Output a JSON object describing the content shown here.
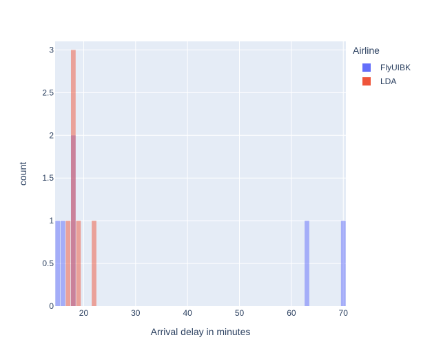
{
  "chart_data": {
    "type": "bar",
    "title": "",
    "xlabel": "Arrival delay in minutes",
    "ylabel": "count",
    "xlim": [
      14.5,
      70.5
    ],
    "ylim": [
      0,
      3.1
    ],
    "barmode": "overlay",
    "bin_width": 1,
    "grid": true,
    "legend_position": "top-right",
    "legend_title": "Airline",
    "x_ticks": [
      {
        "value": 20,
        "label": "20"
      },
      {
        "value": 30,
        "label": "30"
      },
      {
        "value": 40,
        "label": "40"
      },
      {
        "value": 50,
        "label": "50"
      },
      {
        "value": 60,
        "label": "60"
      },
      {
        "value": 70,
        "label": "70"
      }
    ],
    "y_ticks": [
      {
        "value": 0,
        "label": "0"
      },
      {
        "value": 0.5,
        "label": "0.5"
      },
      {
        "value": 1,
        "label": "1"
      },
      {
        "value": 1.5,
        "label": "1.5"
      },
      {
        "value": 2,
        "label": "2"
      },
      {
        "value": 2.5,
        "label": "2.5"
      },
      {
        "value": 3,
        "label": "3"
      }
    ],
    "series": [
      {
        "name": "FlyUIBK",
        "color": "#636efa",
        "x": [
          15,
          16,
          18,
          63,
          70
        ],
        "values": [
          1,
          1,
          2,
          1,
          1
        ]
      },
      {
        "name": "LDA",
        "color": "#ef553b",
        "x": [
          17,
          18,
          19,
          22
        ],
        "values": [
          1,
          3,
          1,
          1
        ]
      }
    ]
  },
  "colors": {
    "plot_background": "#e5ecf6",
    "grid": "#ffffff",
    "text": "#2a3f5f"
  }
}
